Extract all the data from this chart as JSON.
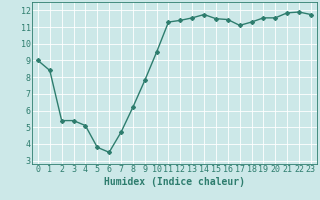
{
  "x": [
    0,
    1,
    2,
    3,
    4,
    5,
    6,
    7,
    8,
    9,
    10,
    11,
    12,
    13,
    14,
    15,
    16,
    17,
    18,
    19,
    20,
    21,
    22,
    23
  ],
  "y": [
    9.0,
    8.4,
    5.4,
    5.4,
    5.1,
    3.8,
    3.5,
    4.7,
    6.2,
    7.8,
    9.5,
    11.3,
    11.4,
    11.55,
    11.75,
    11.5,
    11.45,
    11.1,
    11.3,
    11.55,
    11.55,
    11.85,
    11.9,
    11.75
  ],
  "line_color": "#2e7d6e",
  "marker": "D",
  "marker_size": 2.0,
  "linewidth": 1.0,
  "xlabel": "Humidex (Indice chaleur)",
  "ylabel": "",
  "xlim": [
    -0.5,
    23.5
  ],
  "ylim": [
    2.8,
    12.5
  ],
  "yticks": [
    3,
    4,
    5,
    6,
    7,
    8,
    9,
    10,
    11,
    12
  ],
  "xticks": [
    0,
    1,
    2,
    3,
    4,
    5,
    6,
    7,
    8,
    9,
    10,
    11,
    12,
    13,
    14,
    15,
    16,
    17,
    18,
    19,
    20,
    21,
    22,
    23
  ],
  "bg_color": "#cce8e8",
  "grid_color": "#ffffff",
  "tick_label_color": "#2e7d6e",
  "axis_color": "#2e7d6e",
  "xlabel_color": "#2e7d6e",
  "xlabel_fontsize": 7,
  "tick_fontsize": 6
}
